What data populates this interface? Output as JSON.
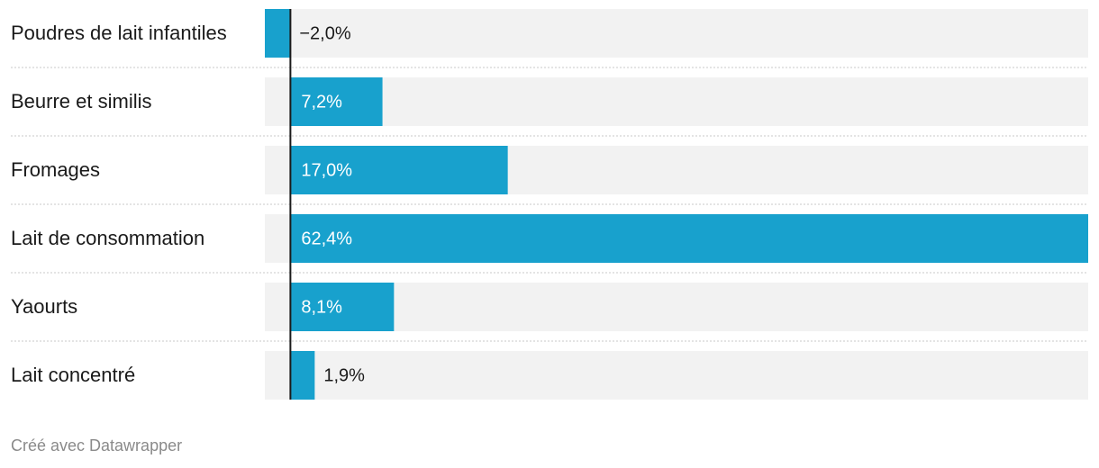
{
  "chart_data": {
    "type": "bar",
    "orientation": "horizontal",
    "categories": [
      "Poudres de lait infantiles",
      "Beurre et similis",
      "Fromages",
      "Lait de consommation",
      "Yaourts",
      "Lait concentré"
    ],
    "values": [
      -2.0,
      7.2,
      17.0,
      62.4,
      8.1,
      1.9
    ],
    "value_labels": [
      "−2,0%",
      "7,2%",
      "17,0%",
      "62,4%",
      "8,1%",
      "1,9%"
    ],
    "color": "#18a1cd",
    "xlim": [
      -2.0,
      62.4
    ]
  },
  "footer": "Créé avec Datawrapper"
}
